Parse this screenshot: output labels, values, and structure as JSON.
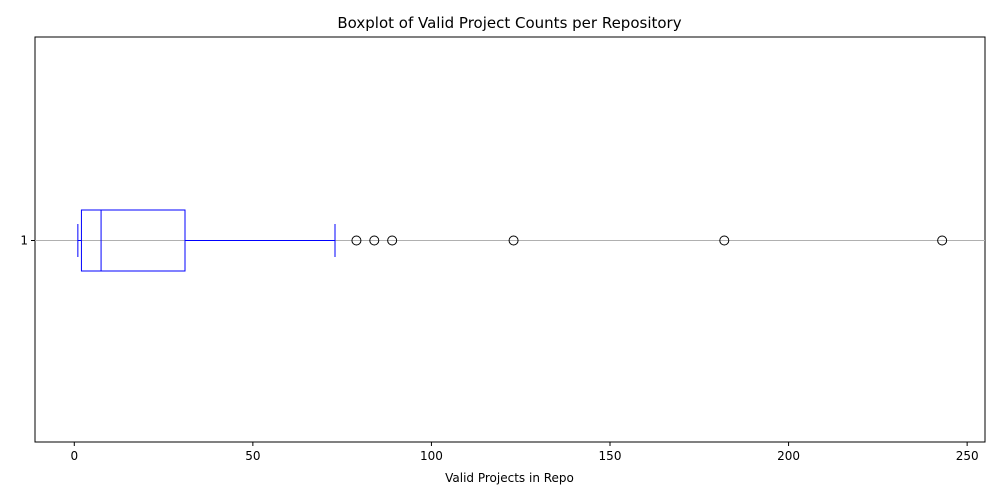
{
  "chart_data": {
    "type": "boxplot",
    "orientation": "horizontal",
    "title": "Boxplot of Valid Project Counts per Repository",
    "xlabel": "Valid Projects in Repo",
    "ylabel": "",
    "xlim": [
      -11,
      255
    ],
    "xticks": [
      0,
      50,
      100,
      150,
      200,
      250
    ],
    "ytick_labels": [
      "1"
    ],
    "grid": "horizontal line at category",
    "series": [
      {
        "category": "1",
        "whisker_low": 1,
        "q1": 2,
        "median": 7.5,
        "q3": 31,
        "whisker_high": 73,
        "outliers": [
          79,
          84,
          89,
          123,
          182,
          243
        ]
      }
    ],
    "colors": {
      "box": "#0000ff",
      "outlier_edge": "#000000",
      "grid": "#b0b0b0"
    }
  }
}
